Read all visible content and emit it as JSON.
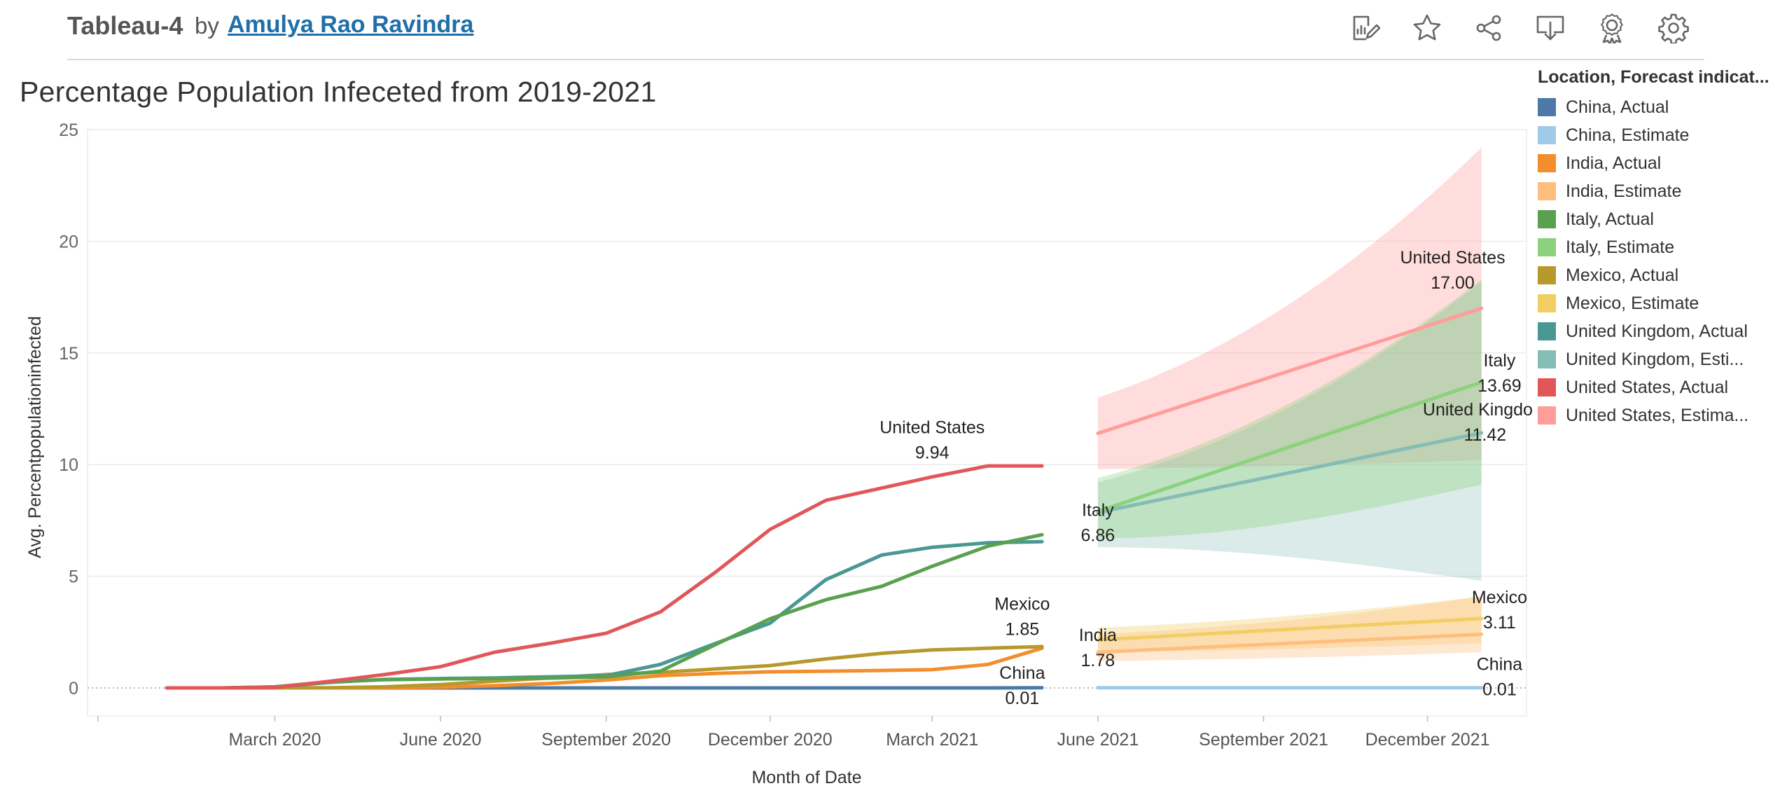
{
  "header": {
    "viz_name": "Tableau-4",
    "by_text": "by",
    "author": "Amulya Rao Ravindra",
    "toolbar": [
      {
        "name": "edit-icon"
      },
      {
        "name": "star-icon"
      },
      {
        "name": "share-icon"
      },
      {
        "name": "download-icon"
      },
      {
        "name": "badge-icon"
      },
      {
        "name": "gear-icon"
      }
    ]
  },
  "chart_data": {
    "type": "line",
    "title": "Percentage Population Infeceted from 2019-2021",
    "xlabel": "Month of Date",
    "ylabel": "Avg. Percentpopulationinfected",
    "ylim": [
      0,
      25
    ],
    "yticks": [
      0,
      5,
      10,
      15,
      20,
      25
    ],
    "xlim": [
      "2019-11-18",
      "2022-01-25"
    ],
    "xticks": [
      {
        "date": "2020-03-01",
        "label": "March 2020"
      },
      {
        "date": "2020-06-01",
        "label": "June 2020"
      },
      {
        "date": "2020-09-01",
        "label": "September 2020"
      },
      {
        "date": "2020-12-01",
        "label": "December 2020"
      },
      {
        "date": "2021-03-01",
        "label": "March 2021"
      },
      {
        "date": "2021-06-01",
        "label": "June 2021"
      },
      {
        "date": "2021-09-01",
        "label": "September 2021"
      },
      {
        "date": "2021-12-01",
        "label": "December 2021"
      }
    ],
    "grid": true,
    "legend_position": "right",
    "legend_title": "Location, Forecast indicat...",
    "legend": [
      {
        "label": "China, Actual",
        "color": "#4e79a7"
      },
      {
        "label": "China, Estimate",
        "color": "#a0cbe8"
      },
      {
        "label": "India, Actual",
        "color": "#f28e2b"
      },
      {
        "label": "India, Estimate",
        "color": "#ffbe7d"
      },
      {
        "label": "Italy, Actual",
        "color": "#59a14f"
      },
      {
        "label": "Italy, Estimate",
        "color": "#8cd17d"
      },
      {
        "label": "Mexico, Actual",
        "color": "#b6992d"
      },
      {
        "label": "Mexico, Estimate",
        "color": "#f1ce63"
      },
      {
        "label": "United Kingdom, Actual",
        "color": "#499894"
      },
      {
        "label": "United Kingdom, Esti...",
        "color": "#86bcb6"
      },
      {
        "label": "United States, Actual",
        "color": "#e15759"
      },
      {
        "label": "United States, Estima...",
        "color": "#ff9d9a"
      }
    ],
    "actual_dates": [
      "2020-01-01",
      "2020-02-01",
      "2020-03-01",
      "2020-04-01",
      "2020-05-01",
      "2020-06-01",
      "2020-07-01",
      "2020-08-01",
      "2020-09-01",
      "2020-10-01",
      "2020-11-01",
      "2020-12-01",
      "2021-01-01",
      "2021-02-01",
      "2021-03-01",
      "2021-04-01",
      "2021-05-01"
    ],
    "actual_series": [
      {
        "location": "China",
        "color": "#4e79a7",
        "values": [
          0,
          0,
          0,
          0,
          0,
          0,
          0,
          0,
          0,
          0,
          0,
          0,
          0,
          0,
          0,
          0,
          0.01
        ]
      },
      {
        "location": "India",
        "color": "#f28e2b",
        "values": [
          0,
          0,
          0,
          0,
          0.01,
          0.03,
          0.1,
          0.2,
          0.35,
          0.55,
          0.65,
          0.72,
          0.75,
          0.78,
          0.82,
          1.05,
          1.78
        ]
      },
      {
        "location": "Mexico",
        "color": "#b6992d",
        "values": [
          0,
          0,
          0,
          0.01,
          0.05,
          0.15,
          0.3,
          0.45,
          0.6,
          0.7,
          0.85,
          1.0,
          1.3,
          1.55,
          1.7,
          1.78,
          1.85
        ]
      },
      {
        "location": "United Kingdom",
        "color": "#499894",
        "values": [
          0,
          0,
          0.04,
          0.25,
          0.38,
          0.42,
          0.45,
          0.5,
          0.55,
          1.05,
          2.0,
          2.9,
          4.85,
          5.95,
          6.3,
          6.5,
          6.55
        ]
      },
      {
        "location": "Italy",
        "color": "#59a14f",
        "values": [
          0,
          0,
          0.05,
          0.28,
          0.37,
          0.4,
          0.42,
          0.44,
          0.5,
          0.75,
          1.95,
          3.1,
          3.95,
          4.55,
          5.45,
          6.35,
          6.86
        ]
      },
      {
        "location": "United States",
        "color": "#e15759",
        "values": [
          0,
          0,
          0.02,
          0.3,
          0.6,
          0.95,
          1.6,
          2.0,
          2.45,
          3.4,
          5.2,
          7.1,
          8.4,
          8.95,
          9.45,
          9.94,
          9.94
        ]
      }
    ],
    "actual_end_labels": [
      {
        "location": "United States",
        "value": "9.94",
        "anchor_date": "2021-03-01",
        "anchor_value": 10.9
      },
      {
        "location": "Italy",
        "value": "6.86",
        "anchor_date": "2021-06-01",
        "anchor_value": 7.2
      },
      {
        "location": "Mexico",
        "value": "1.85",
        "anchor_date": "2021-04-20",
        "anchor_value": 3.0
      },
      {
        "location": "India",
        "value": "1.78",
        "anchor_date": "2021-06-01",
        "anchor_value": 1.6
      },
      {
        "location": "China",
        "value": "0.01",
        "anchor_date": "2021-04-20",
        "anchor_value": -0.1
      }
    ],
    "forecast_dates": [
      "2021-06-01",
      "2021-12-31"
    ],
    "forecast_series": [
      {
        "location": "China",
        "color": "#a0cbe8",
        "values": [
          0.01,
          0.01
        ],
        "band": {
          "lower": [
            0.0,
            0.0
          ],
          "upper": [
            0.02,
            0.02
          ]
        }
      },
      {
        "location": "India",
        "color": "#ffbe7d",
        "values": [
          1.6,
          2.4
        ],
        "band": {
          "lower": [
            1.2,
            1.6
          ],
          "upper": [
            2.4,
            4.1
          ]
        }
      },
      {
        "location": "Mexico",
        "color": "#f1ce63",
        "values": [
          2.15,
          3.11
        ],
        "band": {
          "lower": [
            1.6,
            2.0
          ],
          "upper": [
            2.7,
            4.1
          ]
        }
      },
      {
        "location": "United Kingdom",
        "color": "#86bcb6",
        "values": [
          7.85,
          11.42
        ],
        "band": {
          "lower": [
            6.3,
            4.8
          ],
          "upper": [
            9.2,
            18.2
          ]
        }
      },
      {
        "location": "Italy",
        "color": "#8cd17d",
        "values": [
          7.9,
          13.69
        ],
        "band": {
          "lower": [
            6.7,
            9.1
          ],
          "upper": [
            9.4,
            18.3
          ]
        }
      },
      {
        "location": "United States",
        "color": "#ff9d9a",
        "values": [
          11.4,
          17.0
        ],
        "band": {
          "lower": [
            9.8,
            10.2
          ],
          "upper": [
            13.0,
            24.2
          ]
        }
      }
    ],
    "forecast_end_labels": [
      {
        "location": "United States",
        "value": "17.00",
        "anchor_date": "2021-12-15",
        "anchor_value": 18.5
      },
      {
        "location": "Italy",
        "value": "13.69",
        "anchor_date": "2022-01-10",
        "anchor_value": 13.9
      },
      {
        "location": "United Kingdom",
        "value": "11.42",
        "anchor_date": "2022-01-02",
        "anchor_value": 11.7
      },
      {
        "location": "Mexico",
        "value": "3.11",
        "anchor_date": "2022-01-10",
        "anchor_value": 3.3
      },
      {
        "location": "China",
        "value": "0.01",
        "anchor_date": "2022-01-10",
        "anchor_value": 0.3
      }
    ]
  }
}
